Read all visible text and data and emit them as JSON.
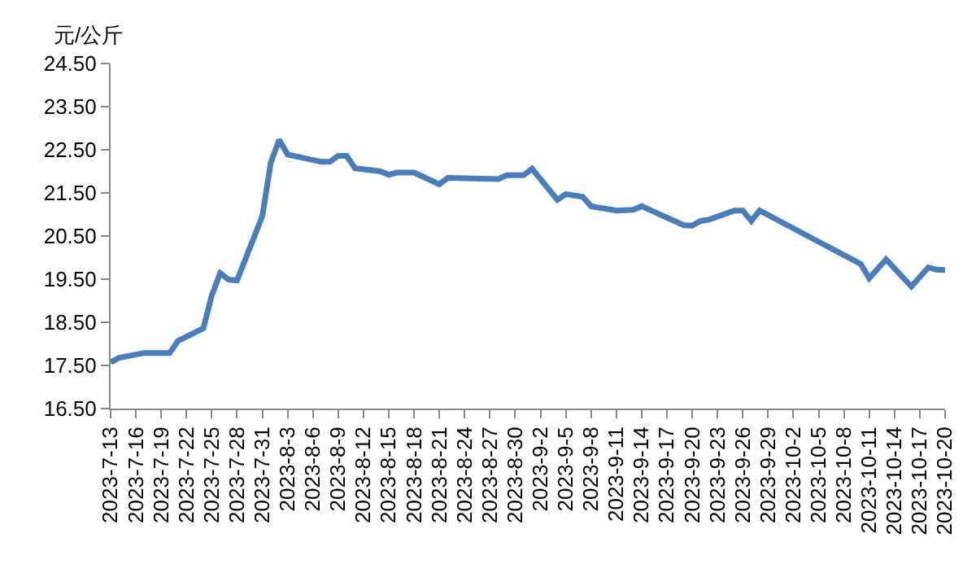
{
  "chart_data": {
    "type": "line",
    "ylabel": "元/公斤",
    "x": [
      "2023-07-13",
      "2023-07-14",
      "2023-07-17",
      "2023-07-20",
      "2023-07-21",
      "2023-07-24",
      "2023-07-25",
      "2023-07-26",
      "2023-07-27",
      "2023-07-28",
      "2023-07-31",
      "2023-08-01",
      "2023-08-02",
      "2023-08-03",
      "2023-08-07",
      "2023-08-08",
      "2023-08-09",
      "2023-08-10",
      "2023-08-11",
      "2023-08-14",
      "2023-08-15",
      "2023-08-16",
      "2023-08-18",
      "2023-08-21",
      "2023-08-22",
      "2023-08-28",
      "2023-08-29",
      "2023-08-31",
      "2023-09-01",
      "2023-09-04",
      "2023-09-05",
      "2023-09-07",
      "2023-09-08",
      "2023-09-11",
      "2023-09-13",
      "2023-09-14",
      "2023-09-19",
      "2023-09-20",
      "2023-09-21",
      "2023-09-22",
      "2023-09-25",
      "2023-09-26",
      "2023-09-27",
      "2023-09-28",
      "2023-10-10",
      "2023-10-11",
      "2023-10-13",
      "2023-10-16",
      "2023-10-18",
      "2023-10-19",
      "2023-10-20"
    ],
    "series": [
      {
        "color": "#4a7ebb",
        "values": [
          17.57,
          17.68,
          17.79,
          17.79,
          18.07,
          18.36,
          19.12,
          19.64,
          19.49,
          19.47,
          20.96,
          22.2,
          22.73,
          22.39,
          22.22,
          22.22,
          22.36,
          22.36,
          22.07,
          22.0,
          21.92,
          21.97,
          21.97,
          21.7,
          21.85,
          21.82,
          21.91,
          21.91,
          22.06,
          21.34,
          21.47,
          21.41,
          21.19,
          21.09,
          21.11,
          21.19,
          20.75,
          20.74,
          20.85,
          20.88,
          21.09,
          21.09,
          20.85,
          21.09,
          19.85,
          19.52,
          19.96,
          19.33,
          19.77,
          19.72,
          19.71
        ]
      }
    ],
    "xlim": [
      "2023-07-13",
      "2023-10-20"
    ],
    "xticks": [
      {
        "value": "2023-07-13",
        "label": "2023-7-13"
      },
      {
        "value": "2023-07-16",
        "label": "2023-7-16"
      },
      {
        "value": "2023-07-19",
        "label": "2023-7-19"
      },
      {
        "value": "2023-07-22",
        "label": "2023-7-22"
      },
      {
        "value": "2023-07-25",
        "label": "2023-7-25"
      },
      {
        "value": "2023-07-28",
        "label": "2023-7-28"
      },
      {
        "value": "2023-07-31",
        "label": "2023-7-31"
      },
      {
        "value": "2023-08-03",
        "label": "2023-8-3"
      },
      {
        "value": "2023-08-06",
        "label": "2023-8-6"
      },
      {
        "value": "2023-08-09",
        "label": "2023-8-9"
      },
      {
        "value": "2023-08-12",
        "label": "2023-8-12"
      },
      {
        "value": "2023-08-15",
        "label": "2023-8-15"
      },
      {
        "value": "2023-08-18",
        "label": "2023-8-18"
      },
      {
        "value": "2023-08-21",
        "label": "2023-8-21"
      },
      {
        "value": "2023-08-24",
        "label": "2023-8-24"
      },
      {
        "value": "2023-08-27",
        "label": "2023-8-27"
      },
      {
        "value": "2023-08-30",
        "label": "2023-8-30"
      },
      {
        "value": "2023-09-02",
        "label": "2023-9-2"
      },
      {
        "value": "2023-09-05",
        "label": "2023-9-5"
      },
      {
        "value": "2023-09-08",
        "label": "2023-9-8"
      },
      {
        "value": "2023-09-11",
        "label": "2023-9-11"
      },
      {
        "value": "2023-09-14",
        "label": "2023-9-14"
      },
      {
        "value": "2023-09-17",
        "label": "2023-9-17"
      },
      {
        "value": "2023-09-20",
        "label": "2023-9-20"
      },
      {
        "value": "2023-09-23",
        "label": "2023-9-23"
      },
      {
        "value": "2023-09-26",
        "label": "2023-9-26"
      },
      {
        "value": "2023-09-29",
        "label": "2023-9-29"
      },
      {
        "value": "2023-10-02",
        "label": "2023-10-2"
      },
      {
        "value": "2023-10-05",
        "label": "2023-10-5"
      },
      {
        "value": "2023-10-08",
        "label": "2023-10-8"
      },
      {
        "value": "2023-10-11",
        "label": "2023-10-11"
      },
      {
        "value": "2023-10-14",
        "label": "2023-10-14"
      },
      {
        "value": "2023-10-17",
        "label": "2023-10-17"
      },
      {
        "value": "2023-10-20",
        "label": "2023-10-20"
      }
    ],
    "ylim": [
      16.5,
      24.5
    ],
    "yticks": [
      {
        "value": 16.5,
        "label": "16.50"
      },
      {
        "value": 17.5,
        "label": "17.50"
      },
      {
        "value": 18.5,
        "label": "18.50"
      },
      {
        "value": 19.5,
        "label": "19.50"
      },
      {
        "value": 20.5,
        "label": "20.50"
      },
      {
        "value": 21.5,
        "label": "21.50"
      },
      {
        "value": 22.5,
        "label": "22.50"
      },
      {
        "value": 23.5,
        "label": "23.50"
      },
      {
        "value": 24.5,
        "label": "24.50"
      }
    ],
    "marker": "none",
    "line_style": "solid"
  }
}
